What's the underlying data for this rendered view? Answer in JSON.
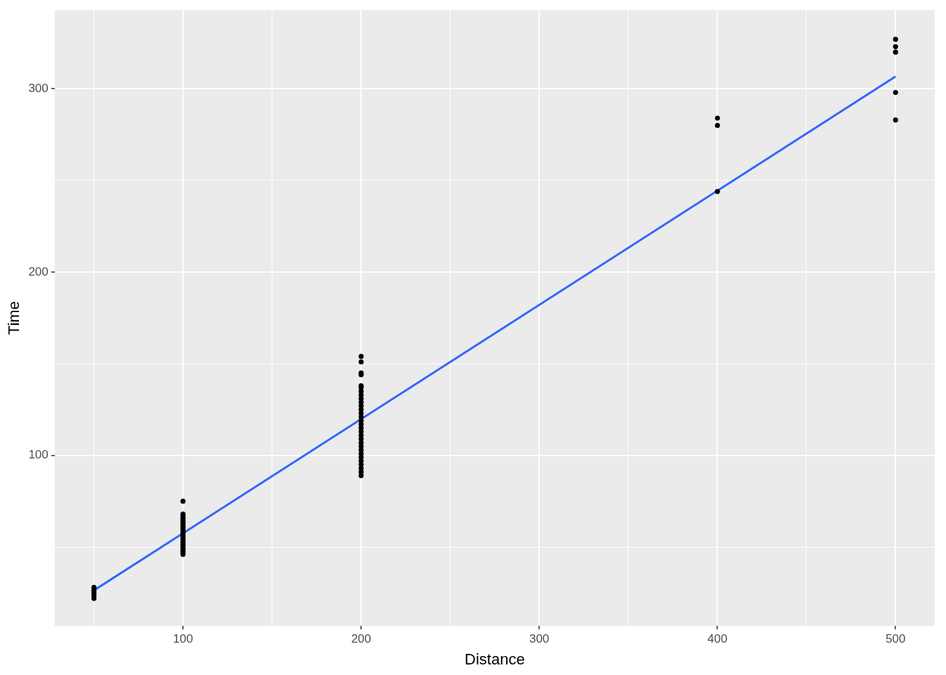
{
  "chart_data": {
    "type": "scatter",
    "xlabel": "Distance",
    "ylabel": "Time",
    "xlim": [
      28,
      522
    ],
    "ylim": [
      7,
      343
    ],
    "xticks": [
      {
        "value": 50,
        "label": null
      },
      100,
      {
        "value": 150,
        "label": null
      },
      200,
      {
        "value": 250,
        "label": null
      },
      300,
      {
        "value": 350,
        "label": null
      },
      400,
      {
        "value": 450,
        "label": null
      },
      500
    ],
    "yticks": [
      {
        "value": 50,
        "label": null
      },
      100,
      {
        "value": 150,
        "label": null
      },
      200,
      {
        "value": 250,
        "label": null
      },
      300
    ],
    "grid": true,
    "legend": false,
    "marker": "circle",
    "series": [
      {
        "type": "scatter",
        "color": "#000000",
        "x": [
          50,
          50,
          50,
          50,
          50,
          50,
          50,
          100,
          100,
          100,
          100,
          100,
          100,
          100,
          100,
          100,
          100,
          100,
          100,
          100,
          100,
          100,
          100,
          100,
          100,
          100,
          100,
          100,
          100,
          100,
          100,
          200,
          200,
          200,
          200,
          200,
          200,
          200,
          200,
          200,
          200,
          200,
          200,
          200,
          200,
          200,
          200,
          200,
          200,
          200,
          200,
          200,
          200,
          200,
          200,
          200,
          200,
          200,
          200,
          200,
          200,
          400,
          400,
          400,
          500,
          500,
          500,
          500,
          500
        ],
        "values": [
          28,
          27,
          26,
          25,
          24,
          23,
          22,
          75,
          68,
          67,
          66,
          65,
          64,
          63,
          62,
          61,
          60,
          59,
          58,
          57,
          56,
          55,
          54,
          53,
          52,
          51,
          50,
          49,
          48,
          47,
          46,
          154,
          151,
          145,
          144,
          138,
          137,
          135,
          133,
          131,
          129,
          127,
          125,
          123,
          121,
          119,
          117,
          115,
          113,
          111,
          109,
          107,
          105,
          103,
          101,
          99,
          97,
          95,
          93,
          91,
          89,
          284,
          280,
          244,
          327,
          323,
          320,
          298,
          283
        ]
      },
      {
        "type": "line",
        "color": "#3366ff",
        "line_style": "solid",
        "marker": "none",
        "x": [
          50,
          500
        ],
        "values": [
          26.4,
          306.7
        ]
      }
    ]
  }
}
